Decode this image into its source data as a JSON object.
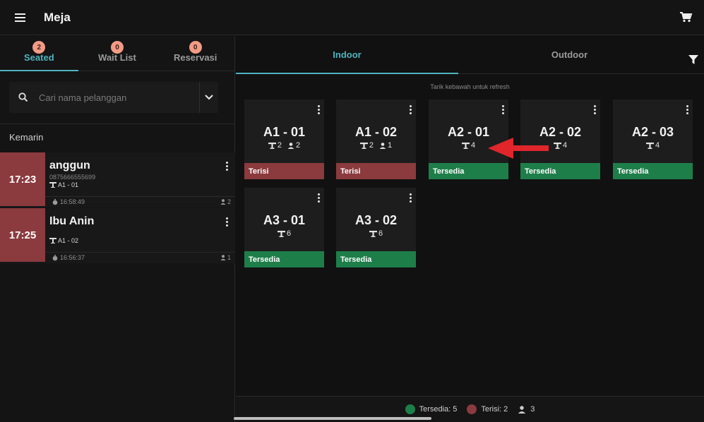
{
  "app": {
    "title": "Meja"
  },
  "left": {
    "tabs": [
      {
        "label": "Seated",
        "badge": "2"
      },
      {
        "label": "Wait List",
        "badge": "0"
      },
      {
        "label": "Reservasi",
        "badge": "0"
      }
    ],
    "search": {
      "placeholder": "Cari nama pelanggan",
      "value": ""
    },
    "group_label": "Kemarin",
    "orders": [
      {
        "time": "17:23",
        "name": "anggun",
        "phone": "0875666555699",
        "table": "A1 - 01",
        "elapsed": "16:58:49",
        "guests": "2"
      },
      {
        "time": "17:25",
        "name": "Ibu Anin",
        "phone": "",
        "table": "A1 - 02",
        "elapsed": "16:56:37",
        "guests": "1"
      }
    ]
  },
  "right": {
    "tabs": [
      {
        "label": "Indoor"
      },
      {
        "label": "Outdoor"
      }
    ],
    "refresh_hint": "Tarik kebawah untuk refresh",
    "tables": [
      {
        "name": "A1 - 01",
        "capacity": "2",
        "guests": "2",
        "status": "Terisi"
      },
      {
        "name": "A1 - 02",
        "capacity": "2",
        "guests": "1",
        "status": "Terisi"
      },
      {
        "name": "A2 - 01",
        "capacity": "4",
        "guests": "",
        "status": "Tersedia"
      },
      {
        "name": "A2 - 02",
        "capacity": "4",
        "guests": "",
        "status": "Tersedia"
      },
      {
        "name": "A2 - 03",
        "capacity": "4",
        "guests": "",
        "status": "Tersedia"
      },
      {
        "name": "A3 - 01",
        "capacity": "6",
        "guests": "",
        "status": "Tersedia"
      },
      {
        "name": "A3 - 02",
        "capacity": "6",
        "guests": "",
        "status": "Tersedia"
      }
    ],
    "legend": {
      "available": "Tersedia: 5",
      "occupied": "Terisi: 2",
      "guests": "3"
    }
  },
  "colors": {
    "accent": "#4fb3bf",
    "occupied": "#8b3a3e",
    "available": "#1e7e4a",
    "badge": "#f29b85",
    "annotation_arrow": "#e0262b"
  }
}
